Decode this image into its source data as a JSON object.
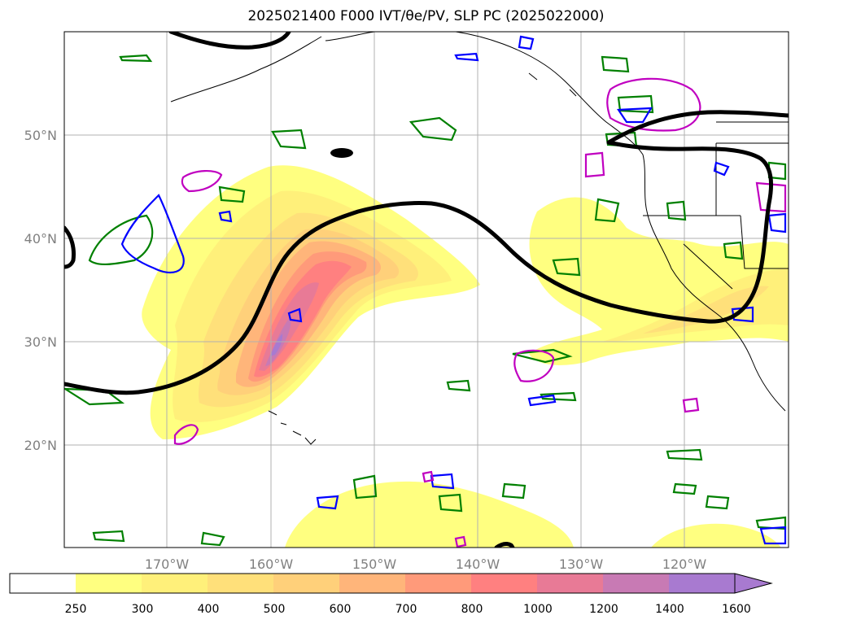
{
  "title": "2025021400 F000 IVT/θe/PV, SLP PC (2025022000)",
  "map": {
    "lon_labels": [
      "170°W",
      "160°W",
      "150°W",
      "140°W",
      "130°W",
      "120°W"
    ],
    "lat_labels": [
      "50°N",
      "40°N",
      "30°N",
      "20°N"
    ],
    "grid": true
  },
  "colorbar": {
    "ticks": [
      "250",
      "300",
      "400",
      "500",
      "600",
      "700",
      "800",
      "1000",
      "1200",
      "1400",
      "1600"
    ],
    "colors": [
      "#ffffff",
      "#ffff80",
      "#fff07a",
      "#ffe07a",
      "#ffd07a",
      "#ffb57a",
      "#ff9a7a",
      "#ff8080",
      "#e87a96",
      "#c87ab4",
      "#a87ad0"
    ],
    "extend": "max"
  },
  "contour_colors": {
    "slp_pc": "#000000",
    "pv_positive": "#008000",
    "pv_negative": "#0000ff",
    "theta_e": "#c000c0"
  }
}
